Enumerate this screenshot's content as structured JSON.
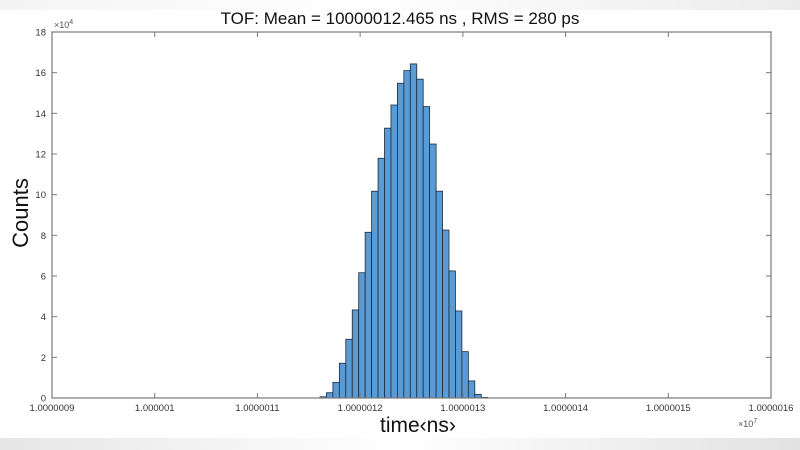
{
  "chart_data": {
    "type": "bar",
    "title": "TOF: Mean = 10000012.465 ns , RMS = 280 ps",
    "xlabel": "time‹ns›",
    "ylabel": "Counts",
    "x_exponent": "×10^7",
    "y_exponent": "×10^4",
    "xlim": [
      1.0000009,
      1.0000016
    ],
    "ylim": [
      0,
      18
    ],
    "xticks": [
      "1.0000009",
      "1.000001",
      "1.0000011",
      "1.0000012",
      "1.0000013",
      "1.0000014",
      "1.0000015",
      "1.0000016"
    ],
    "yticks": [
      "0",
      "2",
      "4",
      "6",
      "8",
      "10",
      "12",
      "14",
      "16",
      "18"
    ],
    "grid": false,
    "legend": null,
    "bar_color": "#5B9BD5",
    "edge_color": "#1a2a3a",
    "bin_left_edge_x": 1.00000116,
    "bin_width_x": 6.2e-09,
    "values": [
      0.06,
      0.26,
      0.77,
      1.71,
      2.89,
      4.33,
      6.16,
      8.15,
      10.17,
      11.79,
      13.27,
      14.41,
      15.48,
      16.1,
      16.43,
      15.68,
      14.33,
      12.49,
      10.17,
      8.26,
      6.25,
      4.28,
      2.28,
      0.84,
      0.18,
      0.03
    ]
  }
}
